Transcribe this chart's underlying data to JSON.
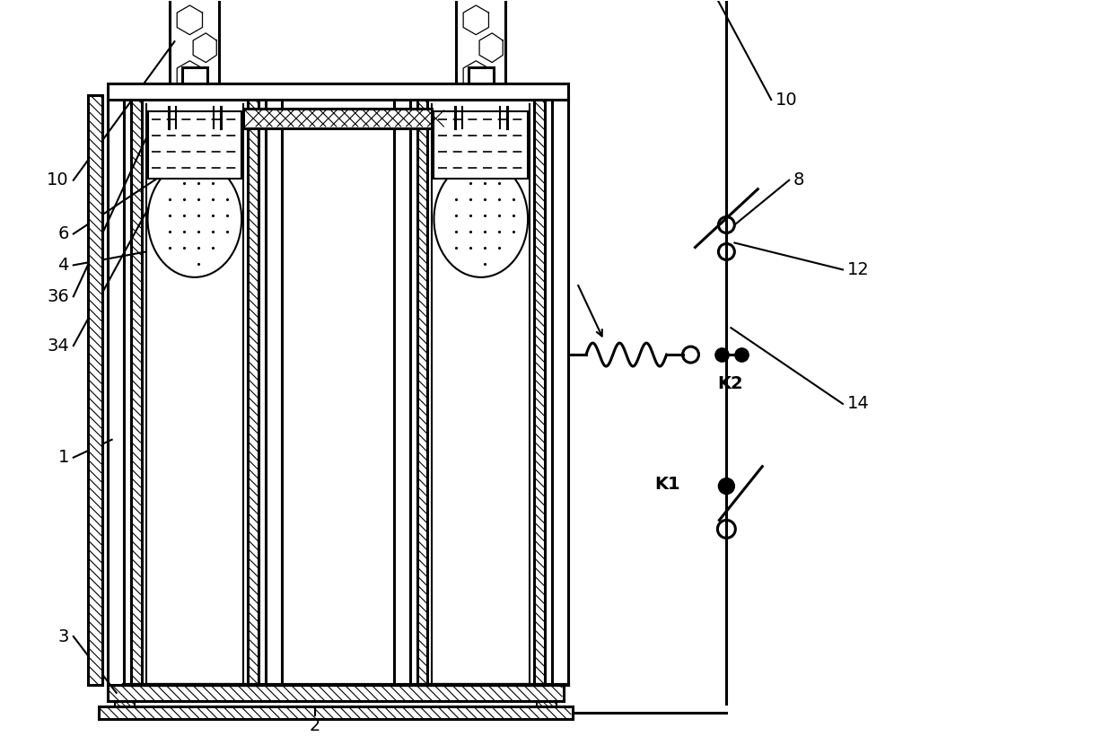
{
  "bg_color": "#ffffff",
  "lw": 1.5,
  "lw2": 2.2,
  "figsize": [
    12.4,
    8.4
  ],
  "dpi": 100
}
